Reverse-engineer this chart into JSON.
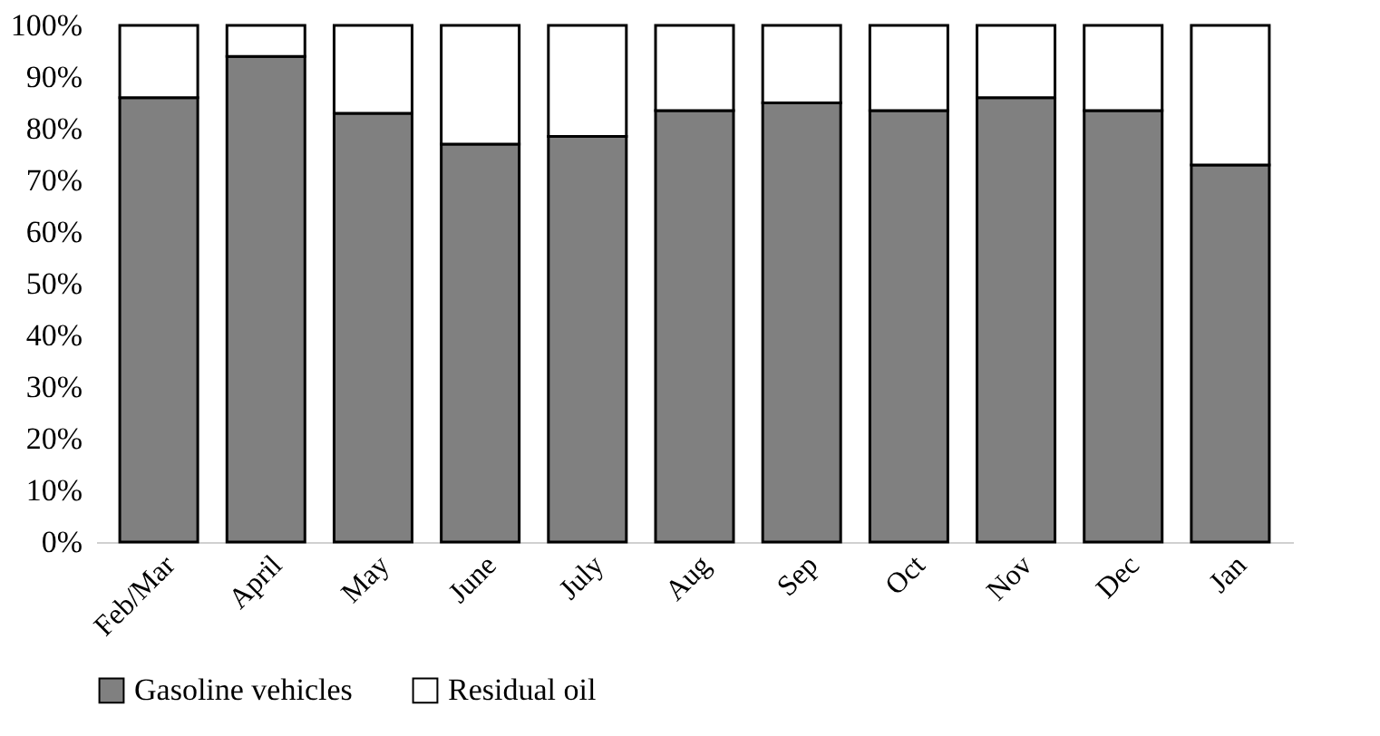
{
  "chart_data": {
    "type": "bar",
    "stacked": true,
    "categories": [
      "Feb/Mar",
      "April",
      "May",
      "June",
      "July",
      "Aug",
      "Sep",
      "Oct",
      "Nov",
      "Dec",
      "Jan"
    ],
    "series": [
      {
        "name": "Gasoline vehicles",
        "color": "#808080",
        "values": [
          86,
          94,
          83,
          77,
          78.5,
          83.5,
          85,
          83.5,
          86,
          83.5,
          73
        ]
      },
      {
        "name": "Residual oil",
        "color": "#ffffff",
        "values": [
          14,
          6,
          17,
          23,
          21.5,
          16.5,
          15,
          16.5,
          14,
          16.5,
          27
        ]
      }
    ],
    "ylim": [
      0,
      100
    ],
    "yticks": [
      {
        "value": 0,
        "label": "0%"
      },
      {
        "value": 10,
        "label": "10%"
      },
      {
        "value": 20,
        "label": "20%"
      },
      {
        "value": 30,
        "label": "30%"
      },
      {
        "value": 40,
        "label": "40%"
      },
      {
        "value": 50,
        "label": "50%"
      },
      {
        "value": 60,
        "label": "60%"
      },
      {
        "value": 70,
        "label": "70%"
      },
      {
        "value": 80,
        "label": "80%"
      },
      {
        "value": 90,
        "label": "90%"
      },
      {
        "value": 100,
        "label": "100%"
      }
    ],
    "grid": false,
    "legend": "bottom"
  }
}
